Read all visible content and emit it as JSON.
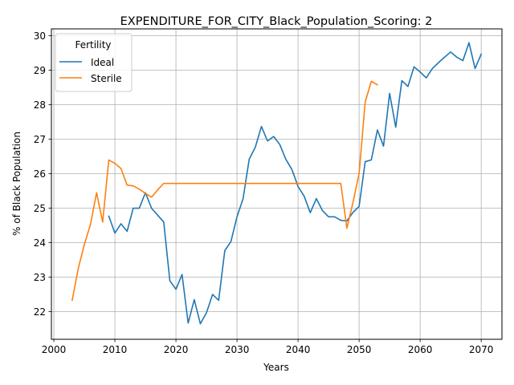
{
  "chart_data": {
    "type": "line",
    "title": "EXPENDITURE_FOR_CITY_Black_Population_Scoring: 2",
    "xlabel": "Years",
    "ylabel": "% of Black Population",
    "xlim": [
      1999.6,
      2073.4
    ],
    "ylim": [
      21.2,
      30.2
    ],
    "xticks": [
      2000,
      2010,
      2020,
      2030,
      2040,
      2050,
      2060,
      2070
    ],
    "yticks": [
      22,
      23,
      24,
      25,
      26,
      27,
      28,
      29,
      30
    ],
    "grid": true,
    "legend": {
      "title": "Fertility",
      "position": "top-left"
    },
    "series": [
      {
        "name": "Ideal",
        "color": "#1f77b4",
        "x": [
          2009,
          2010,
          2011,
          2012,
          2013,
          2014,
          2015,
          2016,
          2017,
          2018,
          2019,
          2020,
          2021,
          2022,
          2023,
          2024,
          2025,
          2026,
          2027,
          2028,
          2029,
          2030,
          2031,
          2032,
          2033,
          2034,
          2035,
          2036,
          2037,
          2038,
          2039,
          2040,
          2041,
          2042,
          2043,
          2044,
          2045,
          2046,
          2047,
          2048,
          2049,
          2050,
          2051,
          2052,
          2053,
          2054,
          2055,
          2056,
          2057,
          2058,
          2059,
          2060,
          2061,
          2062,
          2063,
          2064,
          2065,
          2066,
          2067,
          2068,
          2069,
          2070
        ],
        "y": [
          24.77,
          24.28,
          24.55,
          24.33,
          25.0,
          25.0,
          25.45,
          25.0,
          24.8,
          24.6,
          22.9,
          22.65,
          23.08,
          21.67,
          22.35,
          21.65,
          21.97,
          22.5,
          22.33,
          23.77,
          24.03,
          24.75,
          25.28,
          26.42,
          26.77,
          27.37,
          26.95,
          27.08,
          26.85,
          26.42,
          26.12,
          25.63,
          25.35,
          24.87,
          25.28,
          24.93,
          24.75,
          24.75,
          24.65,
          24.63,
          24.88,
          25.05,
          26.35,
          26.4,
          27.27,
          26.8,
          28.33,
          27.35,
          28.7,
          28.53,
          29.1,
          28.95,
          28.78,
          29.05,
          29.22,
          29.38,
          29.53,
          29.38,
          29.28,
          29.8,
          29.05,
          29.47
        ]
      },
      {
        "name": "Sterile",
        "color": "#ff7f0e",
        "x": [
          2003,
          2004,
          2005,
          2006,
          2007,
          2008,
          2009,
          2010,
          2011,
          2012,
          2013,
          2014,
          2015,
          2016,
          2017,
          2018,
          2019,
          2020,
          2021,
          2022,
          2023,
          2024,
          2025,
          2026,
          2027,
          2028,
          2029,
          2030,
          2031,
          2032,
          2033,
          2034,
          2035,
          2036,
          2037,
          2038,
          2039,
          2040,
          2041,
          2042,
          2043,
          2044,
          2045,
          2046,
          2047,
          2048,
          2049,
          2050,
          2051,
          2052,
          2053
        ],
        "y": [
          22.33,
          23.25,
          23.95,
          24.53,
          25.45,
          24.6,
          26.4,
          26.3,
          26.15,
          25.67,
          25.65,
          25.55,
          25.43,
          25.32,
          25.53,
          25.72,
          25.72,
          25.72,
          25.72,
          25.72,
          25.72,
          25.72,
          25.72,
          25.72,
          25.72,
          25.72,
          25.72,
          25.72,
          25.72,
          25.72,
          25.72,
          25.72,
          25.72,
          25.72,
          25.72,
          25.72,
          25.72,
          25.72,
          25.72,
          25.72,
          25.72,
          25.72,
          25.72,
          25.72,
          25.72,
          24.42,
          25.17,
          26.0,
          28.08,
          28.68,
          28.58
        ]
      }
    ]
  }
}
